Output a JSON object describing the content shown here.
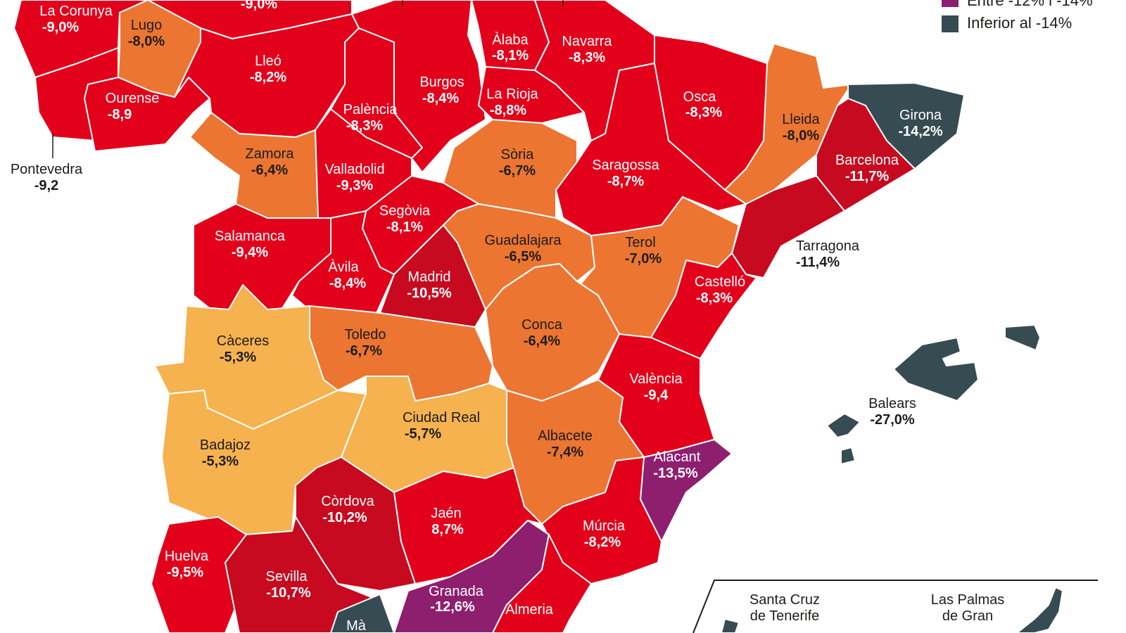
{
  "colors": {
    "red": "#e3001b",
    "dark_red": "#c70a1f",
    "orange": "#ec7532",
    "yellow": "#f5b24f",
    "purple": "#8e1f6f",
    "slate": "#374b53"
  },
  "legend": [
    {
      "label": "Entre -12% i -14%",
      "color": "#8e1f6f"
    },
    {
      "label": "Inferior al -14%",
      "color": "#374b53"
    }
  ],
  "provinces": {
    "la_corunya": {
      "name": "La Corunya",
      "value": "-9,0%"
    },
    "asturies": {
      "name": "",
      "value": "-9,0%"
    },
    "lugo": {
      "name": "Lugo",
      "value": "-8,0%"
    },
    "ourense": {
      "name": "Ourense",
      "value": "-8,9"
    },
    "pontevedra": {
      "name": "Pontevedra",
      "value": "-9,2"
    },
    "lleo": {
      "name": "Lleó",
      "value": "-8,2%"
    },
    "zamora": {
      "name": "Zamora",
      "value": "-6,4%"
    },
    "salamanca": {
      "name": "Salamanca",
      "value": "-9,4%"
    },
    "valladolid": {
      "name": "Valladolid",
      "value": "-9,3%"
    },
    "palencia": {
      "name": "Palència",
      "value": "-8,3%"
    },
    "burgos": {
      "name": "Burgos",
      "value": "-8,4%"
    },
    "alaba": {
      "name": "Àlaba",
      "value": "-8,1%"
    },
    "la_rioja": {
      "name": "La Rioja",
      "value": "-8,8%"
    },
    "navarra": {
      "name": "Navarra",
      "value": "-8,3%"
    },
    "osca": {
      "name": "Osca",
      "value": "-8,3%"
    },
    "lleida": {
      "name": "Lleida",
      "value": "-8,0%"
    },
    "girona": {
      "name": "Girona",
      "value": "-14,2%"
    },
    "barcelona": {
      "name": "Barcelona",
      "value": "-11,7%"
    },
    "tarragona": {
      "name": "Tarragona",
      "value": "-11,4%"
    },
    "saragossa": {
      "name": "Saragossa",
      "value": "-8,7%"
    },
    "soria": {
      "name": "Sòria",
      "value": "-6,7%"
    },
    "segovia": {
      "name": "Segòvia",
      "value": "-8,1%"
    },
    "avila": {
      "name": "Àvila",
      "value": "-8,4%"
    },
    "madrid": {
      "name": "Madrid",
      "value": "-10,5%"
    },
    "guadalajara": {
      "name": "Guadalajara",
      "value": "-6,5%"
    },
    "terol": {
      "name": "Terol",
      "value": "-7,0%"
    },
    "castello": {
      "name": "Castelló",
      "value": "-8,3%"
    },
    "caceres": {
      "name": "Càceres",
      "value": "-5,3%"
    },
    "toledo": {
      "name": "Toledo",
      "value": "-6,7%"
    },
    "conca": {
      "name": "Conca",
      "value": "-6,4%"
    },
    "valencia": {
      "name": "València",
      "value": "-9,4"
    },
    "badajoz": {
      "name": "Badajoz",
      "value": "-5,3%"
    },
    "ciudad_real": {
      "name": "Ciudad Real",
      "value": "-5,7%"
    },
    "albacete": {
      "name": "Albacete",
      "value": "-7,4%"
    },
    "alacant": {
      "name": "Alacant",
      "value": "-13,5%"
    },
    "cordova": {
      "name": "Còrdova",
      "value": "-10,2%"
    },
    "jaen": {
      "name": "Jaén",
      "value": "8,7%"
    },
    "murcia": {
      "name": "Múrcia",
      "value": "-8,2%"
    },
    "huelva": {
      "name": "Huelva",
      "value": "-9,5%"
    },
    "sevilla": {
      "name": "Sevilla",
      "value": "-10,7%"
    },
    "granada": {
      "name": "Granada",
      "value": "-12,6%"
    },
    "almeria": {
      "name": "Almeria",
      "value": ""
    },
    "malaga": {
      "name": "Mà",
      "value": ""
    },
    "balears": {
      "name": "Balears",
      "value": "-27,0%"
    }
  },
  "inset": {
    "tenerife_line1": "Santa Cruz",
    "tenerife_line2": "de Tenerife",
    "palmas_line1": "Las Palmas",
    "palmas_line2": "de Gran"
  }
}
